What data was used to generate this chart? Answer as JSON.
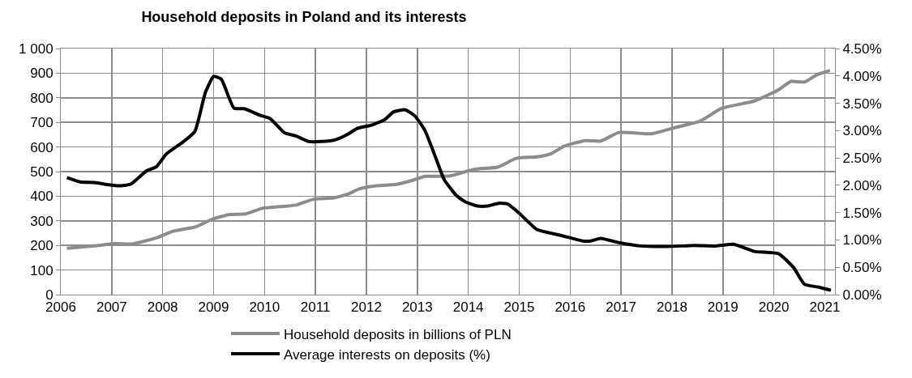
{
  "chart_data": {
    "type": "line",
    "title": "Household deposits in Poland and its interests",
    "xlim": [
      2006,
      2021.2
    ],
    "xticks": [
      2006,
      2007,
      2008,
      2009,
      2010,
      2011,
      2012,
      2013,
      2014,
      2015,
      2016,
      2017,
      2018,
      2019,
      2020,
      2021
    ],
    "ylim": [
      0,
      1000
    ],
    "yticks": [
      0,
      100,
      200,
      300,
      400,
      500,
      600,
      700,
      800,
      900,
      {
        "value": 1000,
        "label": "1 000"
      }
    ],
    "y2lim": [
      0,
      4.5
    ],
    "y2ticks": [
      {
        "value": 0,
        "label": "0.00%"
      },
      {
        "value": 0.5,
        "label": "0.50%"
      },
      {
        "value": 1,
        "label": "1.00%"
      },
      {
        "value": 1.5,
        "label": "1.50%"
      },
      {
        "value": 2,
        "label": "2.00%"
      },
      {
        "value": 2.5,
        "label": "2.50%"
      },
      {
        "value": 3,
        "label": "3.00%"
      },
      {
        "value": 3.5,
        "label": "3.50%"
      },
      {
        "value": 4,
        "label": "4.00%"
      },
      {
        "value": 4.5,
        "label": "4.50%"
      }
    ],
    "grid": true,
    "legend": "bottom",
    "marker": "none",
    "line_style": "solid",
    "series": [
      {
        "name": "Household deposits in billions of PLN",
        "color": "#8c8c8c",
        "x": [
          2006.12,
          2006.66,
          2007.06,
          2007.4,
          2007.9,
          2008.19,
          2008.64,
          2008.98,
          2009.32,
          2009.63,
          2009.94,
          2010.22,
          2010.62,
          2010.95,
          2011.35,
          2011.63,
          2011.86,
          2012.14,
          2012.59,
          2012.88,
          2013.16,
          2013.35,
          2013.65,
          2014.12,
          2014.59,
          2014.94,
          2015.35,
          2015.63,
          2015.89,
          2016.3,
          2016.6,
          2016.96,
          2017.6,
          2018.08,
          2018.55,
          2018.97,
          2019.38,
          2019.62,
          2020.09,
          2020.33,
          2020.6,
          2020.86,
          2021.1
        ],
        "values": [
          188,
          198,
          207,
          206,
          232,
          257,
          275,
          307,
          326,
          328,
          350,
          356,
          364,
          387,
          393,
          408,
          430,
          441,
          448,
          463,
          481,
          481,
          483,
          509,
          519,
          554,
          560,
          573,
          604,
          626,
          624,
          659,
          654,
          680,
          705,
          757,
          776,
          787,
          832,
          866,
          864,
          895,
          911
        ]
      },
      {
        "name": "Average interests on deposits (%)",
        "color": "#000000",
        "axis": "y2",
        "x": [
          2006.12,
          2006.38,
          2006.66,
          2006.94,
          2007.14,
          2007.37,
          2007.68,
          2007.88,
          2008.07,
          2008.41,
          2008.63,
          2008.84,
          2009.0,
          2009.15,
          2009.4,
          2009.6,
          2009.91,
          2010.11,
          2010.39,
          2010.62,
          2010.87,
          2011.12,
          2011.38,
          2011.63,
          2011.82,
          2012.1,
          2012.36,
          2012.53,
          2012.76,
          2012.95,
          2013.15,
          2013.35,
          2013.53,
          2013.76,
          2013.94,
          2014.18,
          2014.38,
          2014.59,
          2014.77,
          2015.0,
          2015.35,
          2015.83,
          2016.25,
          2016.4,
          2016.6,
          2016.96,
          2017.38,
          2017.91,
          2018.44,
          2018.86,
          2019.21,
          2019.62,
          2020.09,
          2020.39,
          2020.6,
          2020.86,
          2021.12
        ],
        "values": [
          2.14,
          2.06,
          2.05,
          2.01,
          1.99,
          2.02,
          2.26,
          2.34,
          2.57,
          2.8,
          2.98,
          3.7,
          3.99,
          3.94,
          3.41,
          3.4,
          3.28,
          3.22,
          2.96,
          2.9,
          2.8,
          2.8,
          2.83,
          2.93,
          3.04,
          3.1,
          3.2,
          3.34,
          3.38,
          3.27,
          3.0,
          2.53,
          2.1,
          1.82,
          1.7,
          1.62,
          1.62,
          1.67,
          1.66,
          1.49,
          1.19,
          1.08,
          0.98,
          0.98,
          1.03,
          0.95,
          0.89,
          0.88,
          0.9,
          0.89,
          0.92,
          0.79,
          0.75,
          0.49,
          0.19,
          0.14,
          0.08
        ]
      }
    ]
  }
}
